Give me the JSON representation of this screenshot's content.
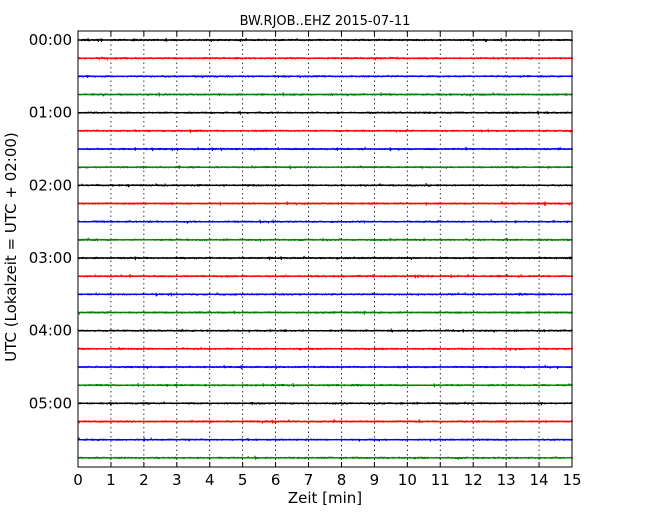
{
  "chart_data": {
    "type": "line",
    "title": "BW.RJOB..EHZ 2015-07-11",
    "xlabel": "Zeit  [min]",
    "ylabel": "UTC (Lokalzeit = UTC + 02:00)",
    "xlim": [
      0,
      15
    ],
    "x_ticks": [
      "0",
      "1",
      "2",
      "3",
      "4",
      "5",
      "6",
      "7",
      "8",
      "9",
      "10",
      "11",
      "12",
      "13",
      "14",
      "15"
    ],
    "y_ticks": [
      "00:00",
      "01:00",
      "02:00",
      "03:00",
      "04:00",
      "05:00"
    ],
    "line_interval_minutes": 15,
    "trace_count": 24,
    "trace_colors": [
      "#000000",
      "#ff0000",
      "#0000ff",
      "#008000"
    ],
    "grid": "vertical-dotted",
    "frame_color": "#000000"
  }
}
